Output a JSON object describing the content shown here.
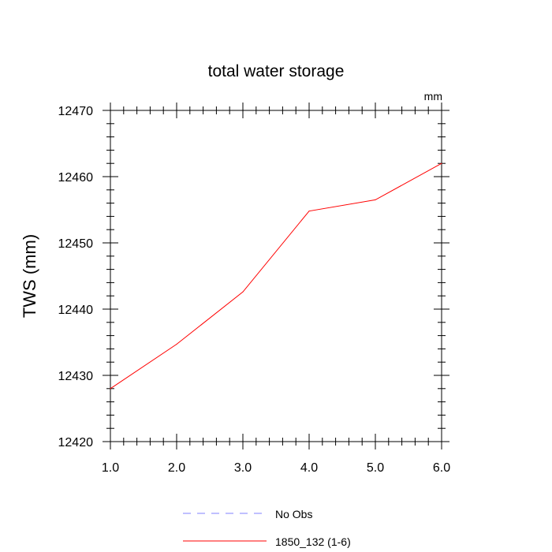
{
  "chart_data": {
    "type": "line",
    "title": "total water storage",
    "units_label": "mm",
    "xlabel": "",
    "ylabel": "TWS  (mm)",
    "xlim": [
      1.0,
      6.0
    ],
    "ylim": [
      12420,
      12470
    ],
    "x_ticks": [
      "1.0",
      "2.0",
      "3.0",
      "4.0",
      "5.0",
      "6.0"
    ],
    "y_ticks": [
      "12420",
      "12430",
      "12440",
      "12450",
      "12460",
      "12470"
    ],
    "x_tick_values": [
      1,
      2,
      3,
      4,
      5,
      6
    ],
    "y_tick_values": [
      12420,
      12430,
      12440,
      12450,
      12460,
      12470
    ],
    "series": [
      {
        "name": "1850_132 (1-6)",
        "color": "#ff0000",
        "dash": "solid",
        "x": [
          1,
          2,
          3,
          4,
          5,
          6
        ],
        "values": [
          12428.0,
          12434.7,
          12442.6,
          12454.8,
          12456.5,
          12462.0
        ]
      }
    ],
    "legend": {
      "placement": "bottom-center",
      "entries": [
        {
          "label": "No Obs",
          "color": "#8080ff",
          "dash": "dashed"
        },
        {
          "label": "1850_132 (1-6)",
          "color": "#ff0000",
          "dash": "solid"
        }
      ]
    },
    "grid": false
  }
}
